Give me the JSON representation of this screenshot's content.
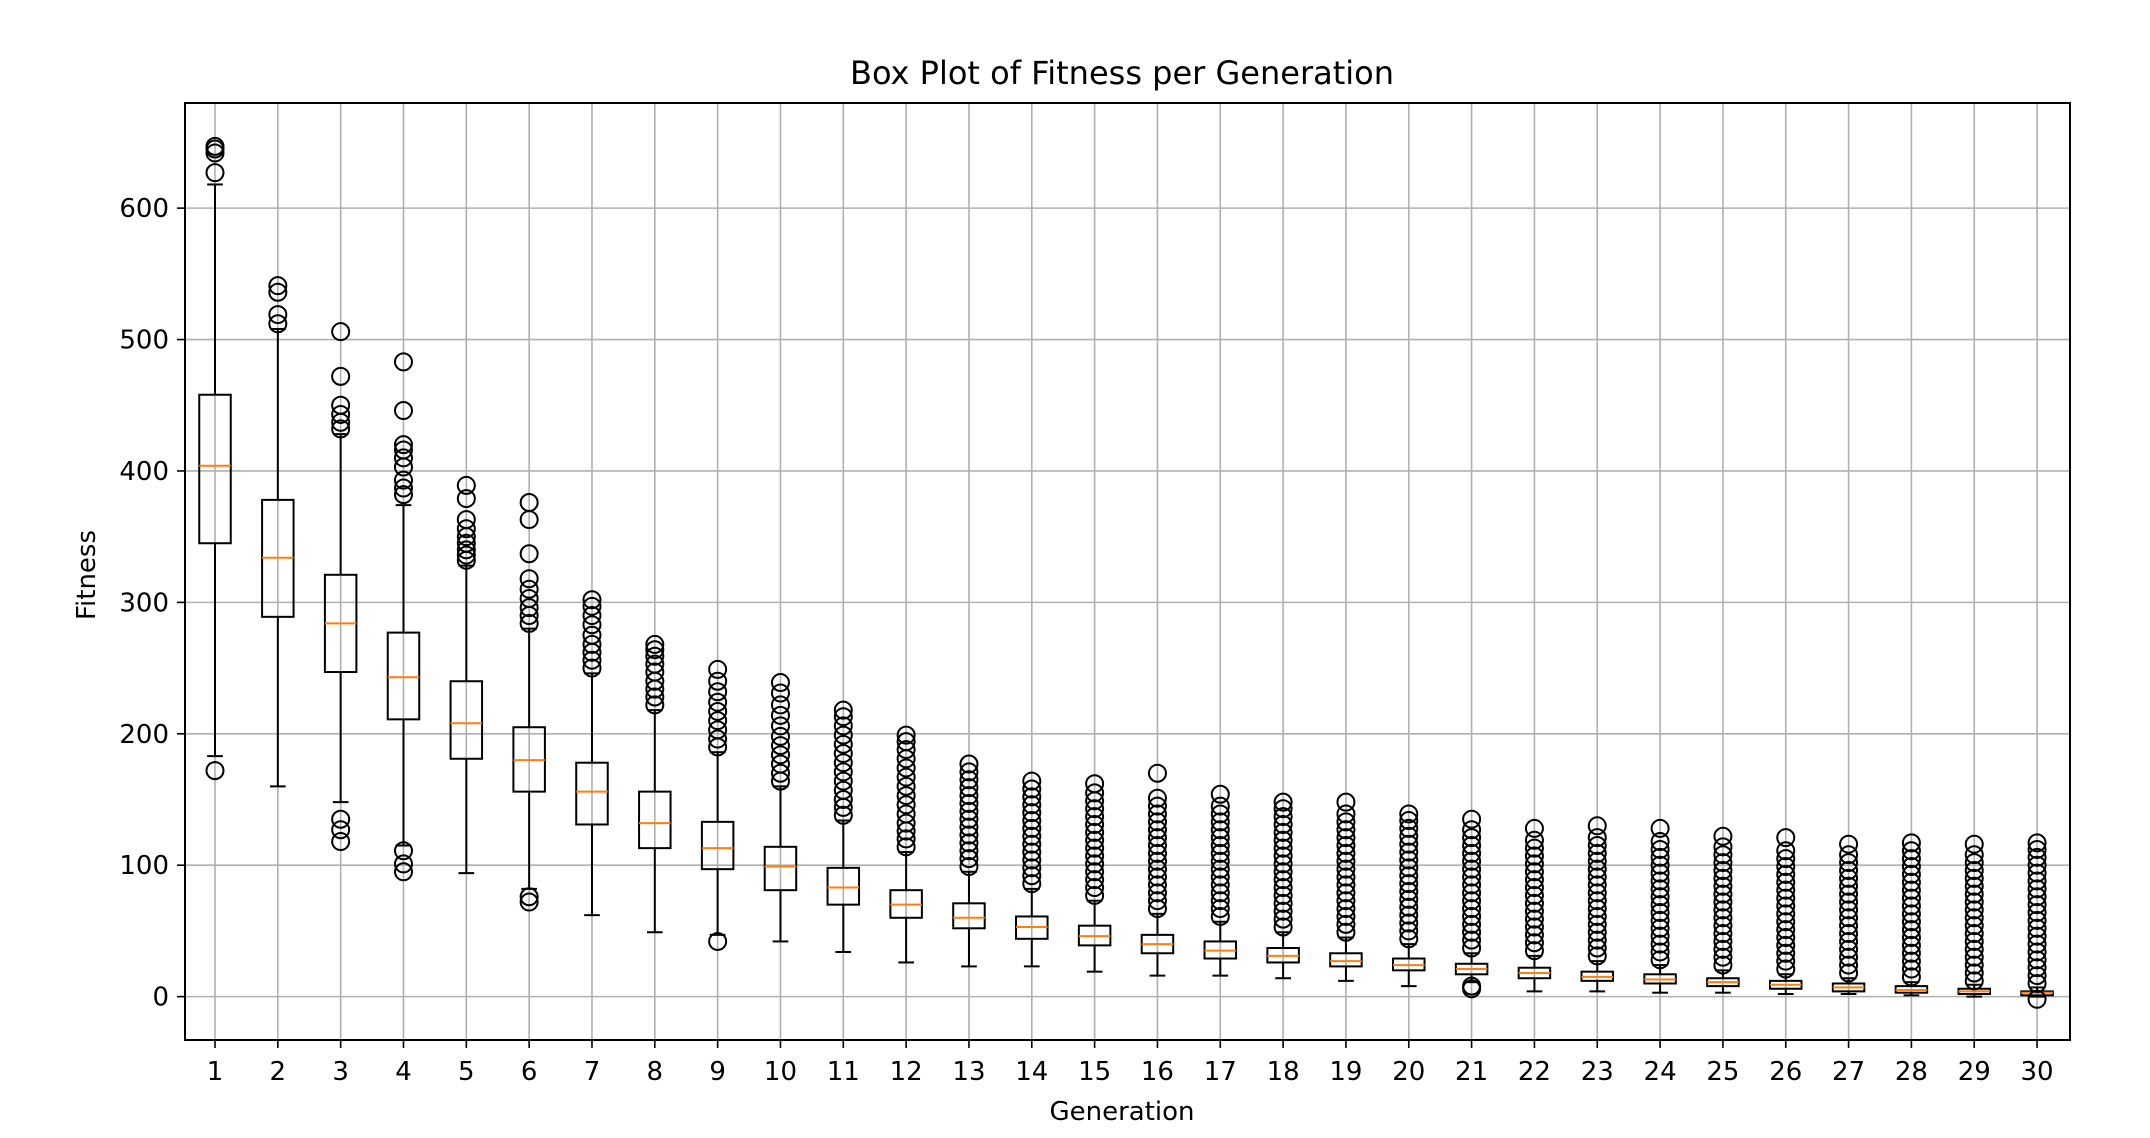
{
  "chart_data": {
    "type": "box",
    "title": "Box Plot of Fitness per Generation",
    "xlabel": "Generation",
    "ylabel": "Fitness",
    "ylim": [
      -33,
      680
    ],
    "yticks": [
      0,
      100,
      200,
      300,
      400,
      500,
      600
    ],
    "grid": true,
    "colors": {
      "box": "#000000",
      "median": "#ff7f0e",
      "grid": "#b0b0b0"
    },
    "categories": [
      "1",
      "2",
      "3",
      "4",
      "5",
      "6",
      "7",
      "8",
      "9",
      "10",
      "11",
      "12",
      "13",
      "14",
      "15",
      "16",
      "17",
      "18",
      "19",
      "20",
      "21",
      "22",
      "23",
      "24",
      "25",
      "26",
      "27",
      "28",
      "29",
      "30"
    ],
    "boxes": [
      {
        "gen": "1",
        "whislo": 183,
        "q1": 345,
        "med": 404,
        "q3": 458,
        "whishi": 618,
        "fliers": [
          172,
          627,
          642,
          645,
          647
        ]
      },
      {
        "gen": "2",
        "whislo": 160,
        "q1": 289,
        "med": 334,
        "q3": 378,
        "whishi": 508,
        "fliers": [
          512,
          519,
          536,
          541
        ]
      },
      {
        "gen": "3",
        "whislo": 148,
        "q1": 247,
        "med": 284,
        "q3": 321,
        "whishi": 428,
        "fliers": [
          118,
          127,
          135,
          432,
          437,
          443,
          450,
          472,
          506
        ]
      },
      {
        "gen": "4",
        "whislo": 115,
        "q1": 211,
        "med": 243,
        "q3": 277,
        "whishi": 374,
        "fliers": [
          95,
          101,
          111,
          382,
          387,
          393,
          403,
          410,
          416,
          420,
          446,
          483
        ]
      },
      {
        "gen": "5",
        "whislo": 94,
        "q1": 181,
        "med": 208,
        "q3": 240,
        "whishi": 328,
        "fliers": [
          332,
          336,
          340,
          345,
          350,
          356,
          363,
          379,
          389
        ]
      },
      {
        "gen": "6",
        "whislo": 82,
        "q1": 156,
        "med": 180,
        "q3": 205,
        "whishi": 280,
        "fliers": [
          72,
          76,
          284,
          290,
          296,
          303,
          310,
          318,
          337,
          363,
          376
        ]
      },
      {
        "gen": "7",
        "whislo": 62,
        "q1": 131,
        "med": 156,
        "q3": 178,
        "whishi": 246,
        "fliers": [
          250,
          256,
          262,
          268,
          275,
          283,
          290,
          297,
          302
        ]
      },
      {
        "gen": "8",
        "whislo": 49,
        "q1": 113,
        "med": 132,
        "q3": 156,
        "whishi": 218,
        "fliers": [
          222,
          228,
          234,
          240,
          247,
          253,
          259,
          264,
          268
        ]
      },
      {
        "gen": "9",
        "whislo": 47,
        "q1": 97,
        "med": 113,
        "q3": 133,
        "whishi": 186,
        "fliers": [
          42,
          190,
          196,
          203,
          210,
          217,
          224,
          232,
          240,
          249
        ]
      },
      {
        "gen": "10",
        "whislo": 42,
        "q1": 81,
        "med": 99,
        "q3": 114,
        "whishi": 160,
        "fliers": [
          164,
          170,
          177,
          184,
          191,
          198,
          206,
          214,
          222,
          231,
          239
        ]
      },
      {
        "gen": "11",
        "whislo": 34,
        "q1": 70,
        "med": 83,
        "q3": 98,
        "whishi": 134,
        "fliers": [
          138,
          144,
          150,
          157,
          164,
          171,
          178,
          185,
          192,
          199,
          206,
          213,
          218
        ]
      },
      {
        "gen": "12",
        "whislo": 26,
        "q1": 60,
        "med": 70,
        "q3": 81,
        "whishi": 110,
        "fliers": [
          114,
          120,
          126,
          132,
          139,
          146,
          153,
          160,
          167,
          174,
          181,
          188,
          194,
          199
        ]
      },
      {
        "gen": "13",
        "whislo": 23,
        "q1": 52,
        "med": 60,
        "q3": 71,
        "whishi": 95,
        "fliers": [
          99,
          105,
          111,
          117,
          123,
          129,
          135,
          141,
          147,
          153,
          159,
          165,
          171,
          177
        ]
      },
      {
        "gen": "14",
        "whislo": 23,
        "q1": 44,
        "med": 53,
        "q3": 61,
        "whishi": 82,
        "fliers": [
          86,
          92,
          98,
          104,
          110,
          116,
          122,
          128,
          134,
          140,
          146,
          152,
          158,
          164
        ]
      },
      {
        "gen": "15",
        "whislo": 19,
        "q1": 39,
        "med": 46,
        "q3": 54,
        "whishi": 73,
        "fliers": [
          77,
          83,
          89,
          95,
          101,
          107,
          113,
          119,
          125,
          131,
          137,
          143,
          149,
          155,
          162
        ]
      },
      {
        "gen": "16",
        "whislo": 16,
        "q1": 33,
        "med": 40,
        "q3": 47,
        "whishi": 63,
        "fliers": [
          67,
          73,
          79,
          85,
          91,
          97,
          103,
          109,
          115,
          121,
          127,
          133,
          139,
          145,
          151,
          170
        ]
      },
      {
        "gen": "17",
        "whislo": 16,
        "q1": 29,
        "med": 35,
        "q3": 42,
        "whishi": 57,
        "fliers": [
          61,
          67,
          73,
          79,
          85,
          91,
          97,
          103,
          109,
          115,
          121,
          127,
          133,
          139,
          145,
          154
        ]
      },
      {
        "gen": "18",
        "whislo": 14,
        "q1": 26,
        "med": 31,
        "q3": 37,
        "whishi": 49,
        "fliers": [
          53,
          59,
          65,
          71,
          77,
          83,
          89,
          95,
          101,
          107,
          113,
          119,
          125,
          131,
          137,
          143,
          148
        ]
      },
      {
        "gen": "19",
        "whislo": 12,
        "q1": 23,
        "med": 27,
        "q3": 33,
        "whishi": 45,
        "fliers": [
          49,
          55,
          61,
          67,
          73,
          79,
          85,
          91,
          97,
          103,
          109,
          115,
          121,
          127,
          133,
          139,
          148
        ]
      },
      {
        "gen": "20",
        "whislo": 8,
        "q1": 20,
        "med": 24,
        "q3": 29,
        "whishi": 40,
        "fliers": [
          44,
          50,
          56,
          62,
          68,
          74,
          80,
          86,
          92,
          98,
          104,
          110,
          116,
          122,
          128,
          134,
          139
        ]
      },
      {
        "gen": "21",
        "whislo": 11,
        "q1": 17,
        "med": 21,
        "q3": 25,
        "whishi": 33,
        "fliers": [
          6,
          8,
          37,
          43,
          49,
          55,
          61,
          67,
          73,
          79,
          85,
          91,
          97,
          103,
          109,
          115,
          121,
          127,
          135
        ]
      },
      {
        "gen": "22",
        "whislo": 4,
        "q1": 14,
        "med": 18,
        "q3": 22,
        "whishi": 31,
        "fliers": [
          35,
          41,
          47,
          53,
          59,
          65,
          71,
          77,
          83,
          89,
          95,
          101,
          107,
          113,
          119,
          128
        ]
      },
      {
        "gen": "23",
        "whislo": 4,
        "q1": 12,
        "med": 15,
        "q3": 19,
        "whishi": 27,
        "fliers": [
          31,
          37,
          43,
          49,
          55,
          61,
          67,
          73,
          79,
          85,
          91,
          97,
          103,
          109,
          115,
          121,
          130
        ]
      },
      {
        "gen": "24",
        "whislo": 3,
        "q1": 10,
        "med": 13,
        "q3": 17,
        "whishi": 24,
        "fliers": [
          28,
          34,
          40,
          46,
          52,
          58,
          64,
          70,
          76,
          82,
          88,
          94,
          100,
          106,
          112,
          118,
          128
        ]
      },
      {
        "gen": "25",
        "whislo": 3,
        "q1": 8,
        "med": 11,
        "q3": 14,
        "whishi": 20,
        "fliers": [
          24,
          30,
          36,
          42,
          48,
          54,
          60,
          66,
          72,
          78,
          84,
          90,
          96,
          102,
          108,
          114,
          122
        ]
      },
      {
        "gen": "26",
        "whislo": 2,
        "q1": 6,
        "med": 9,
        "q3": 12,
        "whishi": 17,
        "fliers": [
          21,
          27,
          33,
          39,
          45,
          51,
          57,
          63,
          69,
          75,
          81,
          87,
          93,
          99,
          105,
          111,
          121
        ]
      },
      {
        "gen": "27",
        "whislo": 2,
        "q1": 4,
        "med": 7,
        "q3": 10,
        "whishi": 14,
        "fliers": [
          18,
          24,
          30,
          36,
          42,
          48,
          54,
          60,
          66,
          72,
          78,
          84,
          90,
          96,
          102,
          108,
          116
        ]
      },
      {
        "gen": "28",
        "whislo": 1,
        "q1": 3,
        "med": 5,
        "q3": 8,
        "whishi": 11,
        "fliers": [
          15,
          21,
          27,
          33,
          39,
          45,
          51,
          57,
          63,
          69,
          75,
          81,
          87,
          93,
          99,
          105,
          111,
          117
        ]
      },
      {
        "gen": "29",
        "whislo": 0,
        "q1": 2,
        "med": 4,
        "q3": 6,
        "whishi": 9,
        "fliers": [
          12,
          18,
          24,
          30,
          36,
          42,
          48,
          54,
          60,
          66,
          72,
          78,
          84,
          90,
          96,
          102,
          108,
          116
        ]
      },
      {
        "gen": "30",
        "whislo": 0,
        "q1": 1,
        "med": 3,
        "q3": 4,
        "whishi": 7,
        "fliers": [
          -2,
          10,
          16,
          22,
          28,
          34,
          40,
          46,
          52,
          58,
          64,
          70,
          76,
          82,
          88,
          94,
          100,
          106,
          112,
          117
        ]
      }
    ]
  }
}
